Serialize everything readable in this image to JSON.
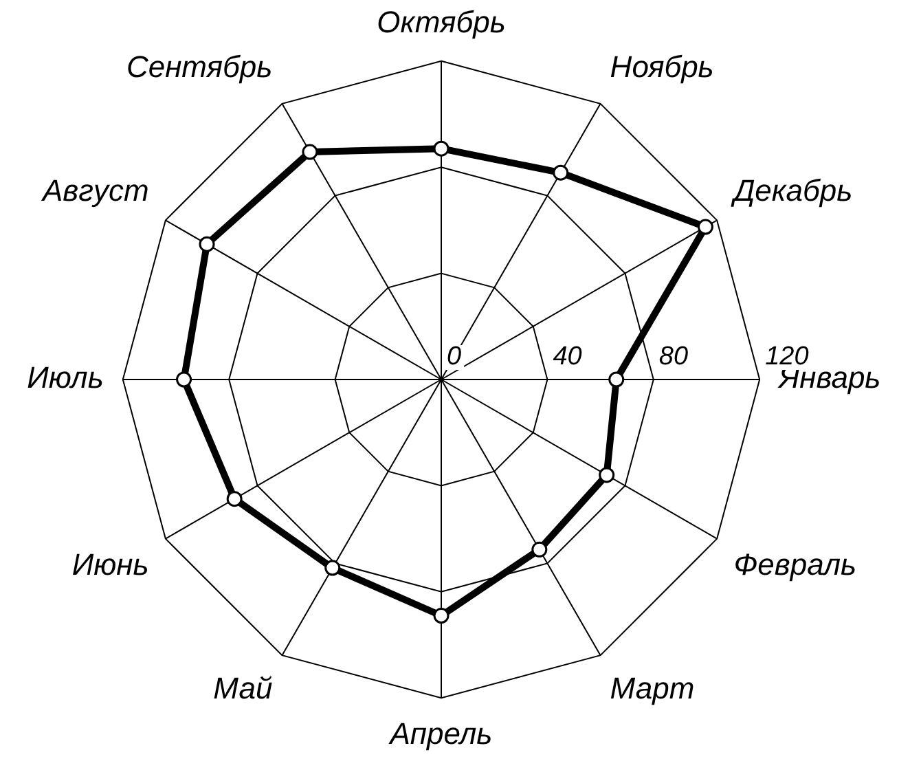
{
  "chart_data": {
    "type": "radar",
    "categories": [
      "Октябрь",
      "Ноябрь",
      "Декабрь",
      "Январь",
      "Февраль",
      "Март",
      "Апрель",
      "Май",
      "Июнь",
      "Июль",
      "Август",
      "Сентябрь"
    ],
    "series": [
      {
        "color": "#000000",
        "values": [
          87,
          90,
          115,
          66,
          72,
          74,
          89,
          82,
          90,
          97,
          102,
          99
        ]
      }
    ],
    "ylim": [
      0,
      120
    ],
    "yticks": [
      0,
      40,
      80,
      120
    ],
    "grid": true,
    "marker": "circle"
  }
}
